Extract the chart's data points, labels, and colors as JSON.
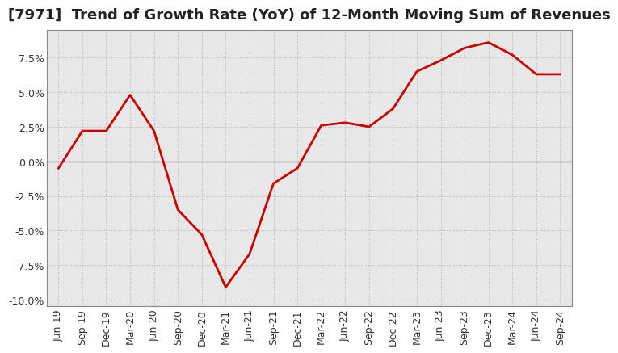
{
  "title": "[7971]  Trend of Growth Rate (YoY) of 12-Month Moving Sum of Revenues",
  "line_color": "#CC0000",
  "background_color": "#FFFFFF",
  "plot_bg_color": "#E8E8E8",
  "grid_color": "#BBBBBB",
  "frame_color": "#888888",
  "ylim": [
    -0.105,
    0.095
  ],
  "yticks": [
    -0.1,
    -0.075,
    -0.05,
    -0.025,
    0.0,
    0.025,
    0.05,
    0.075
  ],
  "x_labels": [
    "Jun-19",
    "Sep-19",
    "Dec-19",
    "Mar-20",
    "Jun-20",
    "Sep-20",
    "Dec-20",
    "Mar-21",
    "Jun-21",
    "Sep-21",
    "Dec-21",
    "Mar-22",
    "Jun-22",
    "Sep-22",
    "Dec-22",
    "Mar-23",
    "Jun-23",
    "Sep-23",
    "Dec-23",
    "Mar-24",
    "Jun-24",
    "Sep-24"
  ],
  "y_values": [
    -0.005,
    0.022,
    0.022,
    0.048,
    0.022,
    -0.035,
    -0.053,
    -0.091,
    -0.067,
    -0.016,
    -0.005,
    0.026,
    0.028,
    0.025,
    0.038,
    0.065,
    0.073,
    0.082,
    0.086,
    0.077,
    0.063,
    0.063
  ],
  "title_fontsize": 13,
  "tick_fontsize": 9,
  "line_width": 2.0
}
